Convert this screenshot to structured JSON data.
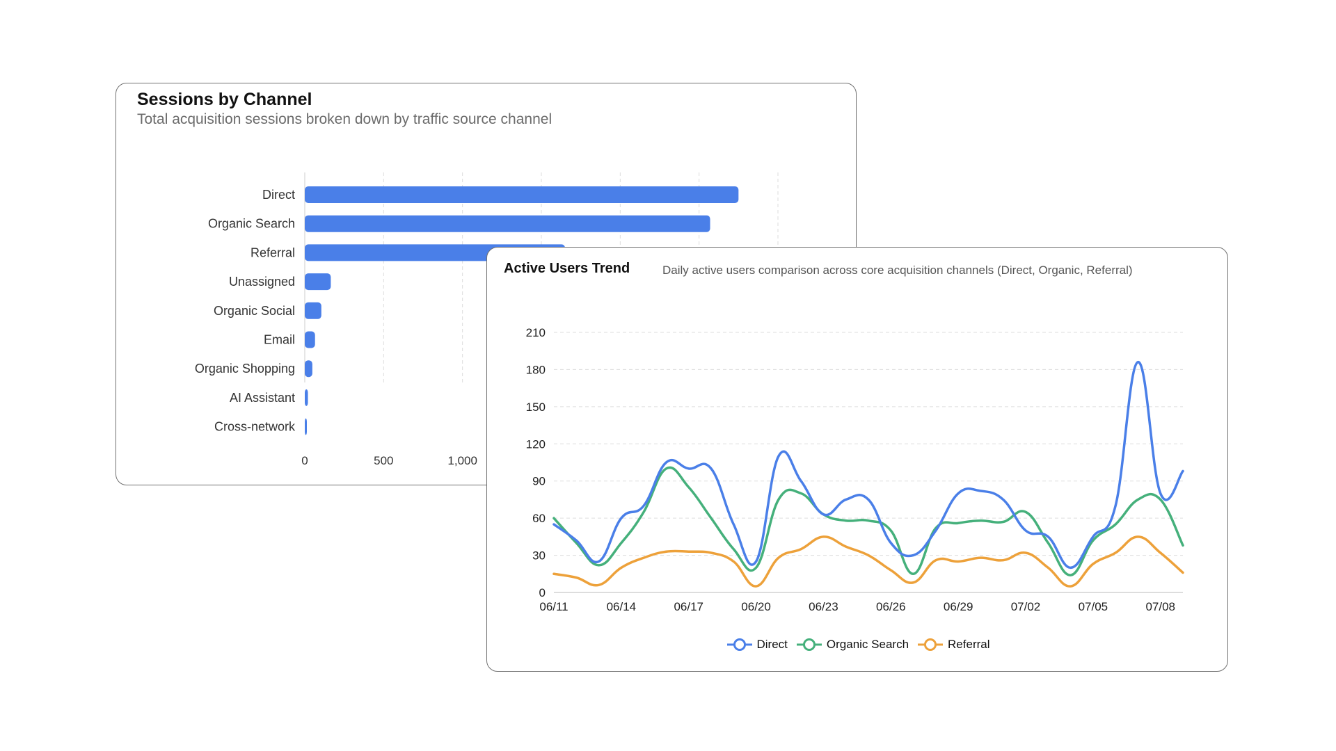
{
  "colors": {
    "bar": "#4a7fe8",
    "direct": "#4a7fe8",
    "organic_search": "#45b07b",
    "referral": "#eda13a",
    "grid": "#dddddd",
    "axis_text": "#333333"
  },
  "sessions_card": {
    "title": "Sessions by Channel",
    "subtitle": "Total acquisition sessions broken down by traffic source channel"
  },
  "active_card": {
    "title": "Active Users Trend",
    "subtitle": "Daily active users comparison across core acquisition channels (Direct, Organic, Referral)"
  },
  "chart_data": [
    {
      "type": "bar",
      "orientation": "horizontal",
      "categories": [
        "Direct",
        "Organic Search",
        "Referral",
        "Unassigned",
        "Organic Social",
        "Email",
        "Organic Shopping",
        "AI Assistant",
        "Cross-network"
      ],
      "values": [
        2750,
        2570,
        1650,
        165,
        105,
        65,
        48,
        20,
        10
      ],
      "x_ticks": [
        "0",
        "500",
        "1,000"
      ],
      "x_tick_values": [
        0,
        500,
        1000
      ],
      "grid_values": [
        0,
        500,
        1000,
        1500,
        2000,
        2500,
        3000
      ],
      "xlim": [
        0,
        3000
      ],
      "grid": true
    },
    {
      "type": "line",
      "smooth": true,
      "x": [
        "06/11",
        "06/12",
        "06/13",
        "06/14",
        "06/15",
        "06/16",
        "06/17",
        "06/18",
        "06/19",
        "06/20",
        "06/21",
        "06/22",
        "06/23",
        "06/24",
        "06/25",
        "06/26",
        "06/27",
        "06/28",
        "06/29",
        "06/30",
        "07/01",
        "07/02",
        "07/03",
        "07/04",
        "07/05",
        "07/06",
        "07/07",
        "07/08",
        "07/09"
      ],
      "x_ticks": [
        "06/11",
        "06/14",
        "06/17",
        "06/20",
        "06/23",
        "06/26",
        "06/29",
        "07/02",
        "07/05",
        "07/08"
      ],
      "y_ticks": [
        "0",
        "30",
        "60",
        "90",
        "120",
        "150",
        "180",
        "210"
      ],
      "ylim": [
        0,
        210
      ],
      "grid": true,
      "legend_position": "bottom",
      "series": [
        {
          "name": "Direct",
          "color_key": "direct",
          "values": [
            55,
            42,
            25,
            60,
            70,
            105,
            100,
            100,
            55,
            25,
            110,
            90,
            63,
            75,
            75,
            40,
            30,
            50,
            80,
            82,
            75,
            50,
            45,
            20,
            45,
            70,
            186,
            80,
            98
          ]
        },
        {
          "name": "Organic Search",
          "color_key": "organic_search",
          "values": [
            60,
            40,
            22,
            40,
            65,
            100,
            85,
            60,
            35,
            20,
            75,
            80,
            63,
            58,
            58,
            50,
            15,
            52,
            56,
            58,
            57,
            65,
            40,
            14,
            42,
            55,
            75,
            75,
            38
          ]
        },
        {
          "name": "Referral",
          "color_key": "referral",
          "values": [
            15,
            12,
            6,
            20,
            28,
            33,
            33,
            32,
            25,
            5,
            28,
            35,
            45,
            37,
            30,
            18,
            8,
            26,
            25,
            28,
            26,
            32,
            20,
            5,
            23,
            32,
            45,
            32,
            16
          ]
        }
      ]
    }
  ]
}
